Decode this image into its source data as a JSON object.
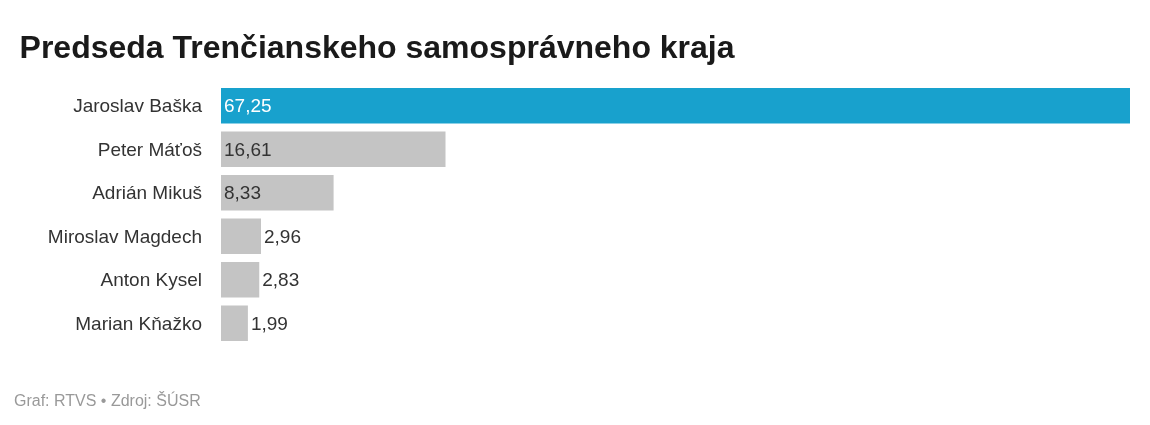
{
  "chart_data": {
    "type": "bar",
    "orientation": "horizontal",
    "title": "Predseda Trenčianskeho samosprávneho kraja",
    "categories": [
      "Jaroslav Baška",
      "Peter Máťoš",
      "Adrián Mikuš",
      "Miroslav Magdech",
      "Anton Kysel",
      "Marian Kňažko"
    ],
    "values": [
      67.25,
      16.61,
      8.33,
      2.96,
      2.83,
      1.99
    ],
    "value_labels": [
      "67,25",
      "16,61",
      "8,33",
      "2,96",
      "2,83",
      "1,99"
    ],
    "colors": [
      "#18a1cd",
      "#c4c4c4",
      "#c4c4c4",
      "#c4c4c4",
      "#c4c4c4",
      "#c4c4c4"
    ],
    "annotations": [
      "Graf: RTVS • Zdroj: ŠÚSR"
    ]
  }
}
